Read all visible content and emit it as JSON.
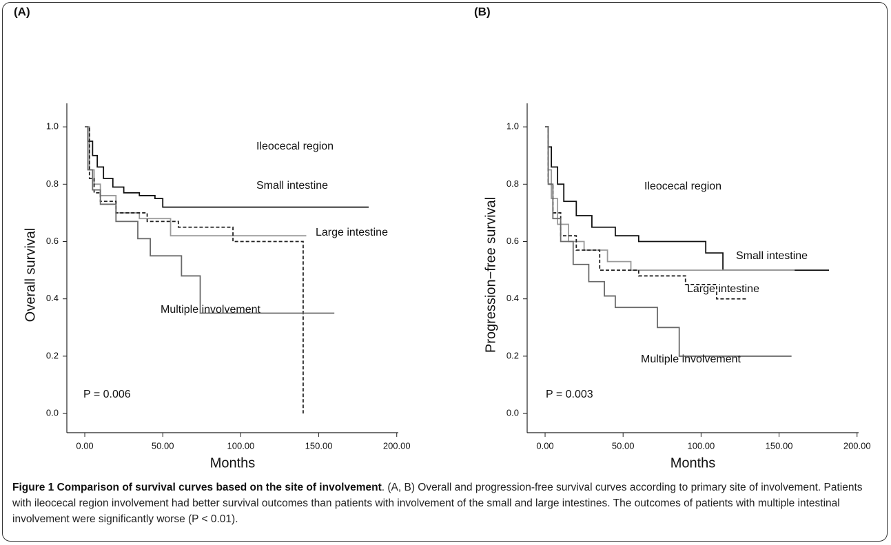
{
  "chart_data": [
    {
      "type": "step",
      "panel_label": "(A)",
      "y_label": "Overall survival",
      "x_label": "Months",
      "annotation": "P = 0.006",
      "xlim": [
        -11.5,
        201
      ],
      "ylim": [
        -0.067,
        1.082
      ],
      "xticks": [
        {
          "value": 0,
          "label": "0.00"
        },
        {
          "value": 50,
          "label": "50.00"
        },
        {
          "value": 100,
          "label": "100.00"
        },
        {
          "value": 150,
          "label": "150.00"
        },
        {
          "value": 200,
          "label": "200.00"
        }
      ],
      "yticks": [
        {
          "value": 0,
          "label": "0.0"
        },
        0.2,
        0.4,
        0.6,
        0.8,
        {
          "value": 1,
          "label": "1.0"
        }
      ],
      "series": [
        {
          "name": "Ileocecal region",
          "color": "#111111",
          "dashed": false,
          "x": [
            0,
            2,
            5,
            8,
            12,
            18,
            25,
            35,
            45,
            50,
            182
          ],
          "values": [
            1.0,
            0.95,
            0.9,
            0.86,
            0.82,
            0.79,
            0.77,
            0.76,
            0.75,
            0.72,
            0.72
          ]
        },
        {
          "name": "Small intestine",
          "color": "#9a9a9a",
          "dashed": false,
          "x": [
            0,
            3,
            6,
            10,
            20,
            35,
            55,
            142
          ],
          "values": [
            1.0,
            0.85,
            0.8,
            0.76,
            0.7,
            0.68,
            0.62,
            0.62
          ]
        },
        {
          "name": "Large intestine",
          "color": "#222222",
          "dashed": true,
          "x": [
            0,
            3,
            6,
            10,
            20,
            40,
            60,
            95,
            140,
            140
          ],
          "values": [
            1.0,
            0.82,
            0.77,
            0.74,
            0.7,
            0.67,
            0.65,
            0.6,
            0.6,
            0
          ]
        },
        {
          "name": "Multiple involvement",
          "color": "#6a6a6a",
          "dashed": false,
          "x": [
            0,
            2,
            5,
            10,
            20,
            34,
            42,
            62,
            74,
            160
          ],
          "values": [
            1.0,
            0.85,
            0.78,
            0.73,
            0.67,
            0.61,
            0.55,
            0.48,
            0.35,
            0.35
          ]
        }
      ]
    },
    {
      "type": "step",
      "panel_label": "(B)",
      "y_label": "Progression−free survival",
      "x_label": "Months",
      "annotation": "P = 0.003",
      "xlim": [
        -11.5,
        201
      ],
      "ylim": [
        -0.067,
        1.082
      ],
      "xticks": [
        {
          "value": 0,
          "label": "0.00"
        },
        {
          "value": 50,
          "label": "50.00"
        },
        {
          "value": 100,
          "label": "100.00"
        },
        {
          "value": 150,
          "label": "150.00"
        },
        {
          "value": 200,
          "label": "200.00"
        }
      ],
      "yticks": [
        {
          "value": 0,
          "label": "0.0"
        },
        0.2,
        0.4,
        0.6,
        0.8,
        {
          "value": 1,
          "label": "1.0"
        }
      ],
      "series": [
        {
          "name": "Ileocecal region",
          "color": "#111111",
          "dashed": false,
          "x": [
            0,
            2,
            4,
            8,
            12,
            20,
            30,
            45,
            60,
            103,
            114,
            182
          ],
          "values": [
            1.0,
            0.93,
            0.86,
            0.8,
            0.74,
            0.69,
            0.65,
            0.62,
            0.6,
            0.56,
            0.5,
            0.5
          ]
        },
        {
          "name": "Small intestine",
          "color": "#9a9a9a",
          "dashed": false,
          "x": [
            0,
            2,
            4,
            8,
            15,
            25,
            40,
            55,
            160
          ],
          "values": [
            1.0,
            0.85,
            0.75,
            0.66,
            0.6,
            0.57,
            0.53,
            0.5,
            0.5
          ]
        },
        {
          "name": "Large intestine",
          "color": "#222222",
          "dashed": true,
          "x": [
            0,
            2,
            5,
            10,
            20,
            35,
            60,
            90,
            110,
            130
          ],
          "values": [
            1.0,
            0.8,
            0.7,
            0.62,
            0.57,
            0.5,
            0.48,
            0.45,
            0.4,
            0.4
          ]
        },
        {
          "name": "Multiple involvement",
          "color": "#6a6a6a",
          "dashed": false,
          "x": [
            0,
            2,
            5,
            10,
            18,
            28,
            38,
            45,
            72,
            86,
            158
          ],
          "values": [
            1.0,
            0.8,
            0.68,
            0.6,
            0.52,
            0.46,
            0.41,
            0.37,
            0.3,
            0.2,
            0.2
          ]
        }
      ]
    }
  ],
  "caption": {
    "label": "Figure 1 Comparison of survival curves based on the site of involvement",
    "text": ". (A, B) Overall and progression-free survival curves according to primary site of involvement. Patients with ileocecal region involvement had better survival outcomes than patients with involvement of the small and large intestines. The outcomes of patients with multiple intestinal involvement were significantly worse (P < 0.01)."
  }
}
